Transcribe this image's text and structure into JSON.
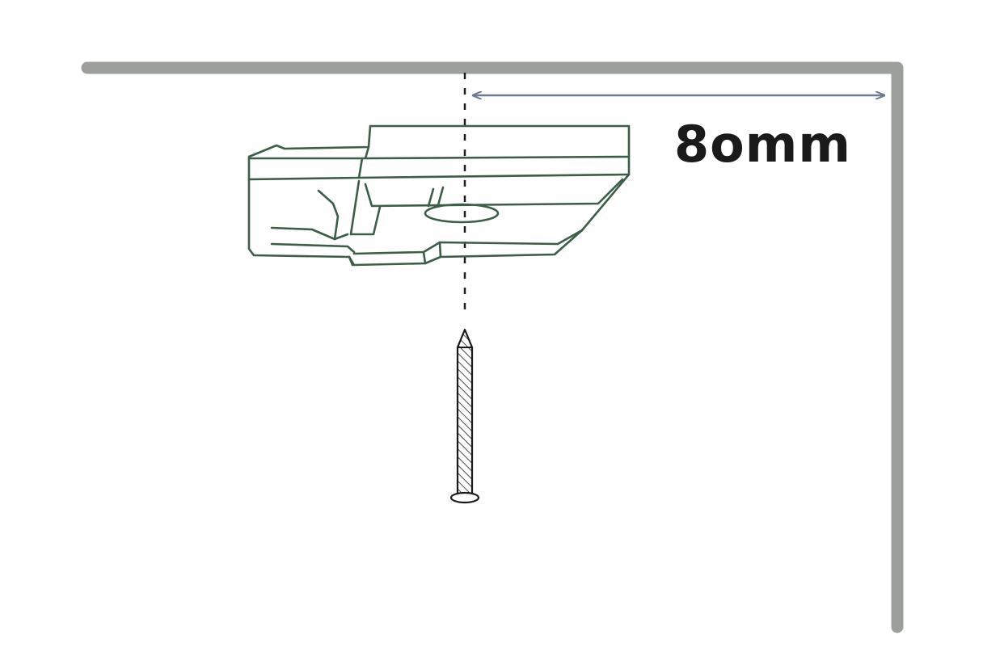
{
  "diagram": {
    "dimension_label": "8omm",
    "colors": {
      "wall": "#9da09a",
      "bracket": "#3a5e46",
      "arrow": "#6e7a90",
      "screw": "#1a1a1a",
      "text": "#1a1a1a"
    },
    "icons": [
      "bracket-icon",
      "screw-icon",
      "dimension-arrow-icon"
    ]
  }
}
